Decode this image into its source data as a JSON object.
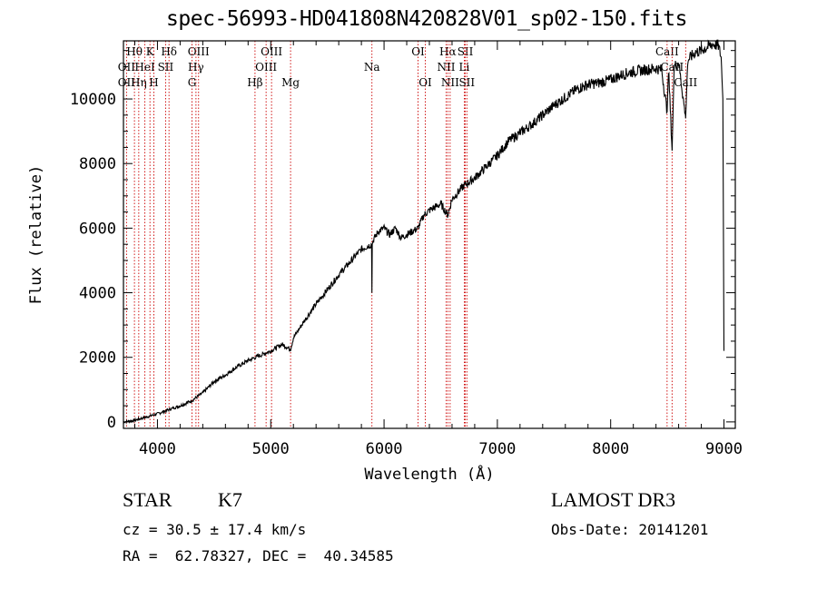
{
  "chart_data": {
    "type": "line",
    "title": "spec-56993-HD041808N420828V01_sp02-150.fits",
    "xlabel": "Wavelength (Å)",
    "ylabel": "Flux (relative)",
    "xlim": [
      3700,
      9100
    ],
    "ylim": [
      -200,
      11800
    ],
    "xticks": [
      4000,
      5000,
      6000,
      7000,
      8000,
      9000
    ],
    "yticks": [
      0,
      2000,
      4000,
      6000,
      8000,
      10000
    ],
    "series": [
      {
        "name": "flux",
        "x": [
          3700,
          3800,
          3900,
          4000,
          4100,
          4200,
          4300,
          4400,
          4500,
          4600,
          4700,
          4800,
          4900,
          5000,
          5100,
          5175,
          5200,
          5300,
          5400,
          5500,
          5600,
          5700,
          5800,
          5890,
          5893,
          5896,
          5900,
          5950,
          6000,
          6050,
          6100,
          6150,
          6200,
          6250,
          6300,
          6350,
          6400,
          6500,
          6563,
          6600,
          6700,
          6800,
          6900,
          7000,
          7100,
          7200,
          7300,
          7400,
          7500,
          7600,
          7700,
          7800,
          7900,
          8000,
          8100,
          8200,
          8300,
          8400,
          8450,
          8498,
          8510,
          8542,
          8560,
          8600,
          8662,
          8680,
          8750,
          8800,
          8850,
          8900,
          8950,
          8975,
          8990,
          9000
        ],
        "y": [
          0,
          50,
          150,
          250,
          380,
          500,
          650,
          900,
          1250,
          1450,
          1700,
          1900,
          2050,
          2200,
          2400,
          2250,
          2600,
          3150,
          3650,
          4100,
          4550,
          4950,
          5350,
          5500,
          4000,
          5500,
          5600,
          5900,
          6000,
          5800,
          6000,
          5700,
          5800,
          5900,
          6000,
          6400,
          6550,
          6750,
          6400,
          6900,
          7300,
          7550,
          7900,
          8250,
          8700,
          8950,
          9200,
          9500,
          9800,
          10050,
          10300,
          10450,
          10500,
          10600,
          10750,
          10850,
          10900,
          10950,
          10900,
          9600,
          10950,
          8400,
          11000,
          11150,
          9400,
          11200,
          11450,
          11500,
          11600,
          11700,
          11650,
          11300,
          10000,
          2200
        ]
      }
    ],
    "line_markers": [
      {
        "label": "Hθ",
        "wavelength": 3797,
        "row": 1
      },
      {
        "label": "OII",
        "wavelength": 3727,
        "row": 2
      },
      {
        "label": "OII",
        "wavelength": 3727,
        "row": 3
      },
      {
        "label": "Hη",
        "wavelength": 3835,
        "row": 3
      },
      {
        "label": "HeI",
        "wavelength": 3889,
        "row": 2
      },
      {
        "label": "K",
        "wavelength": 3934,
        "row": 1
      },
      {
        "label": "H",
        "wavelength": 3968,
        "row": 3
      },
      {
        "label": "SII",
        "wavelength": 4072,
        "row": 2
      },
      {
        "label": "Hδ",
        "wavelength": 4102,
        "row": 1
      },
      {
        "label": "OIII",
        "wavelength": 4363,
        "row": 1
      },
      {
        "label": "Hγ",
        "wavelength": 4340,
        "row": 2
      },
      {
        "label": "G",
        "wavelength": 4305,
        "row": 3
      },
      {
        "label": "Hβ",
        "wavelength": 4861,
        "row": 3
      },
      {
        "label": "OIII",
        "wavelength": 5007,
        "row": 1
      },
      {
        "label": "OIII",
        "wavelength": 4959,
        "row": 2
      },
      {
        "label": "Mg",
        "wavelength": 5175,
        "row": 3
      },
      {
        "label": "Na",
        "wavelength": 5893,
        "row": 2
      },
      {
        "label": "OI",
        "wavelength": 6300,
        "row": 1
      },
      {
        "label": "OI",
        "wavelength": 6364,
        "row": 3
      },
      {
        "label": "Hα",
        "wavelength": 6563,
        "row": 1
      },
      {
        "label": "NII",
        "wavelength": 6548,
        "row": 2
      },
      {
        "label": "NII",
        "wavelength": 6583,
        "row": 3
      },
      {
        "label": "SII",
        "wavelength": 6717,
        "row": 1
      },
      {
        "label": "Li",
        "wavelength": 6708,
        "row": 2
      },
      {
        "label": "SII",
        "wavelength": 6731,
        "row": 3
      },
      {
        "label": "CaII",
        "wavelength": 8498,
        "row": 1
      },
      {
        "label": "CaII",
        "wavelength": 8542,
        "row": 2
      },
      {
        "label": "CaII",
        "wavelength": 8662,
        "row": 3
      }
    ]
  },
  "info": {
    "class": "STAR",
    "subclass": "K7",
    "survey": "LAMOST DR3",
    "cz": "cz = 30.5 ± 17.4 km/s",
    "obs_date": "Obs-Date: 20141201",
    "radec": "RA =  62.78327, DEC =  40.34585"
  },
  "colors": {
    "spectrum": "#000000",
    "marker_line": "#cc0000"
  }
}
